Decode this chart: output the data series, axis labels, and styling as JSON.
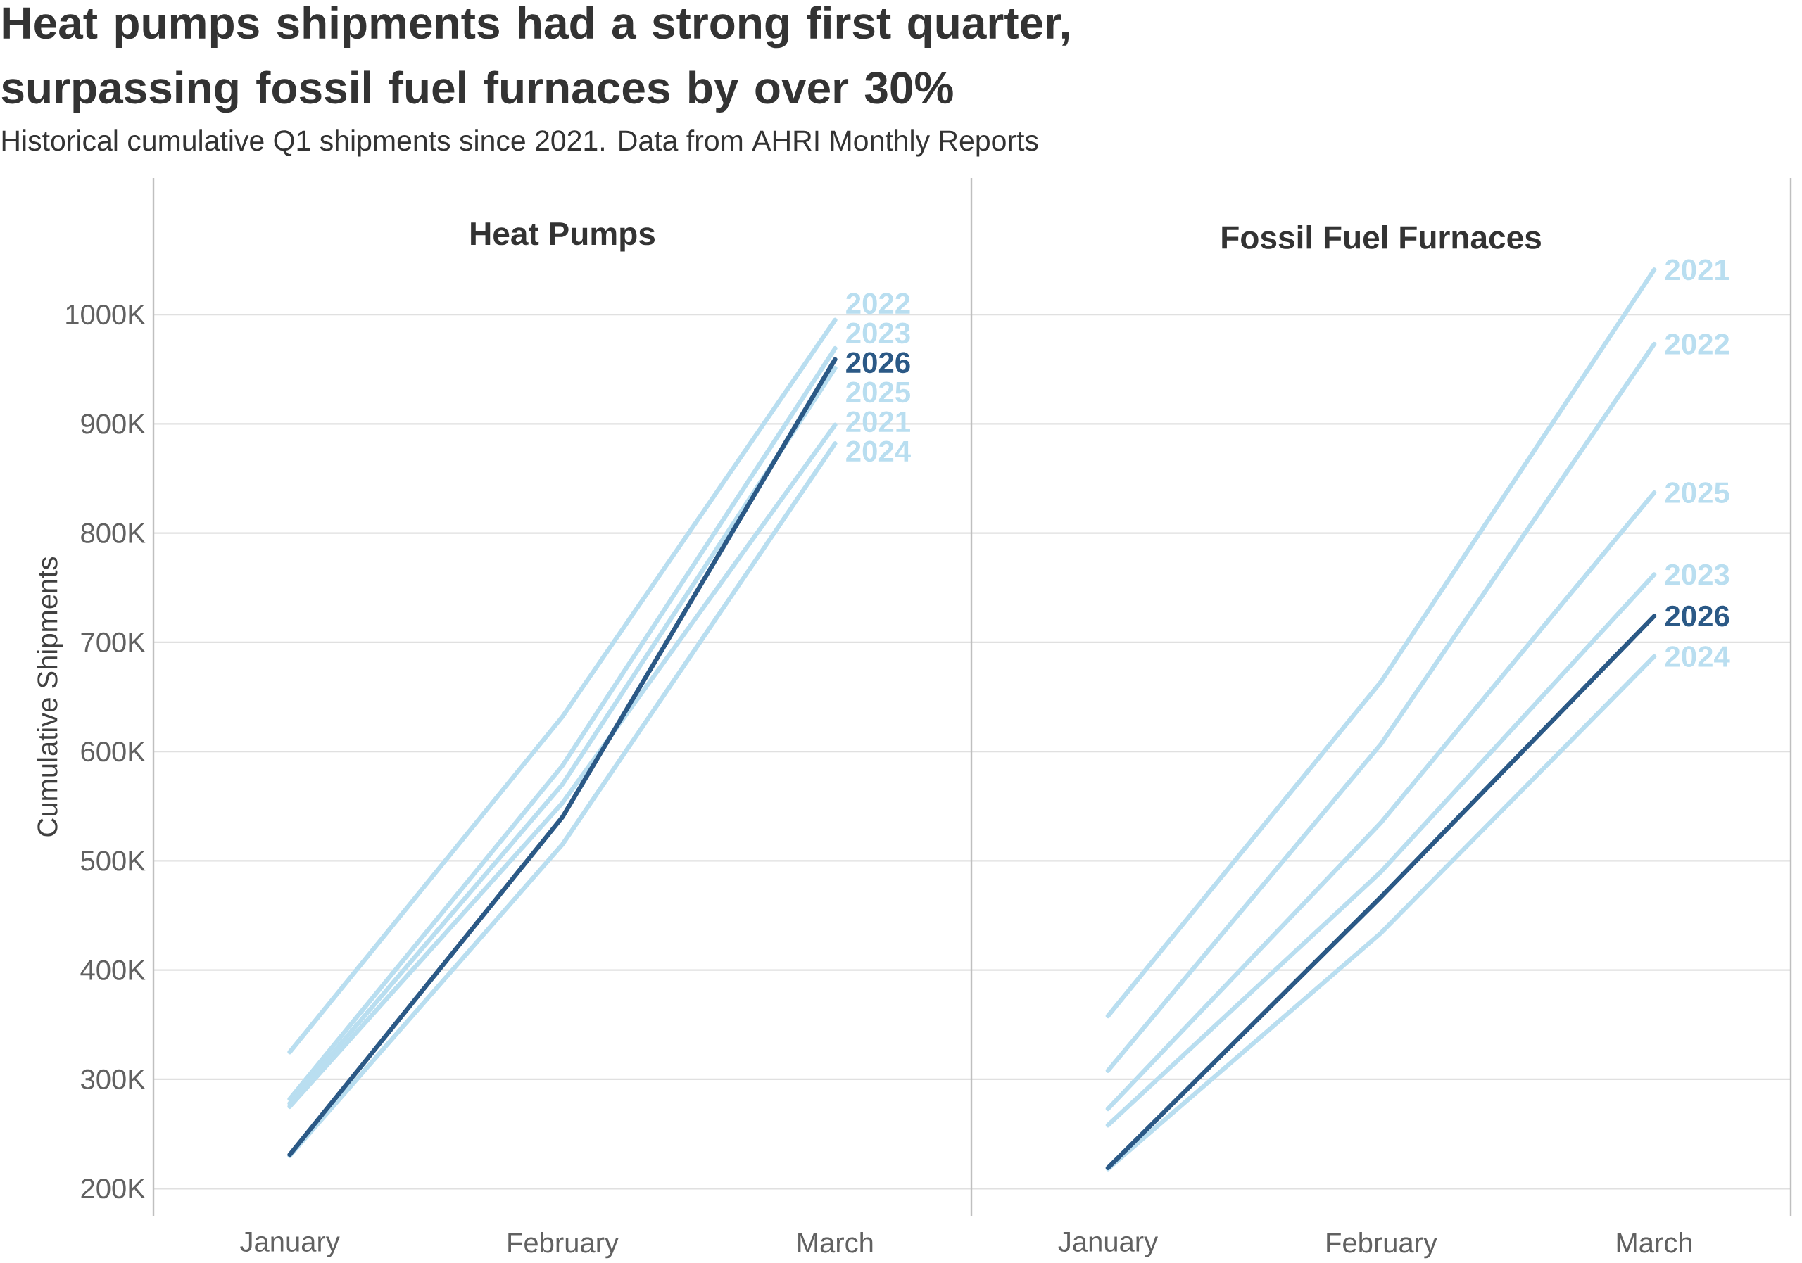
{
  "chart_data": [
    {
      "type": "line",
      "title": "Heat Pumps",
      "ylabel": "Cumulative Shipments",
      "annotations": [
        "Heat pumps shipments had a strong first quarter, surpassing fossil fuel furnaces by over 30%",
        "Historical cumulative Q1 shipments since 2021. Data from AHRI Monthly Reports"
      ],
      "categories": [
        "January",
        "February",
        "March"
      ],
      "ylim": [
        175,
        1125
      ],
      "yticks": [
        {
          "value": 200,
          "label": "200K"
        },
        {
          "value": 300,
          "label": "300K"
        },
        {
          "value": 400,
          "label": "400K"
        },
        {
          "value": 500,
          "label": "500K"
        },
        {
          "value": 600,
          "label": "600K"
        },
        {
          "value": 700,
          "label": "700K"
        },
        {
          "value": 800,
          "label": "800K"
        },
        {
          "value": 900,
          "label": "900K"
        },
        {
          "value": 1000,
          "label": "1000K"
        }
      ],
      "grid": "y",
      "series": [
        {
          "name": "2021",
          "color": "#b9def0",
          "values": [
            275,
            553,
            899
          ]
        },
        {
          "name": "2022",
          "color": "#b9def0",
          "values": [
            325,
            632,
            995
          ]
        },
        {
          "name": "2023",
          "color": "#b9def0",
          "values": [
            282,
            587,
            969
          ]
        },
        {
          "name": "2024",
          "color": "#b9def0",
          "values": [
            230,
            515,
            882
          ]
        },
        {
          "name": "2025",
          "color": "#b9def0",
          "values": [
            278,
            570,
            951
          ]
        },
        {
          "name": "2026",
          "color": "#2b5986",
          "values": [
            231,
            540,
            959
          ]
        }
      ]
    },
    {
      "type": "line",
      "title": "Fossil Fuel Furnaces",
      "categories": [
        "January",
        "February",
        "March"
      ],
      "ylim": [
        175,
        1125
      ],
      "yticks": [
        {
          "value": 200,
          "label": null
        },
        {
          "value": 300,
          "label": null
        },
        {
          "value": 400,
          "label": null
        },
        {
          "value": 500,
          "label": null
        },
        {
          "value": 600,
          "label": null
        },
        {
          "value": 700,
          "label": null
        },
        {
          "value": 800,
          "label": null
        },
        {
          "value": 900,
          "label": null
        },
        {
          "value": 1000,
          "label": null
        }
      ],
      "tick_labels": "x",
      "grid": "y",
      "series": [
        {
          "name": "2021",
          "color": "#b9def0",
          "values": [
            358,
            664,
            1041
          ]
        },
        {
          "name": "2022",
          "color": "#b9def0",
          "values": [
            308,
            607,
            973
          ]
        },
        {
          "name": "2023",
          "color": "#b9def0",
          "values": [
            258,
            490,
            762
          ]
        },
        {
          "name": "2024",
          "color": "#b9def0",
          "values": [
            218,
            434,
            687
          ]
        },
        {
          "name": "2025",
          "color": "#b9def0",
          "values": [
            273,
            535,
            837
          ]
        },
        {
          "name": "2026",
          "color": "#2b5986",
          "values": [
            219,
            467,
            724
          ]
        }
      ]
    }
  ]
}
